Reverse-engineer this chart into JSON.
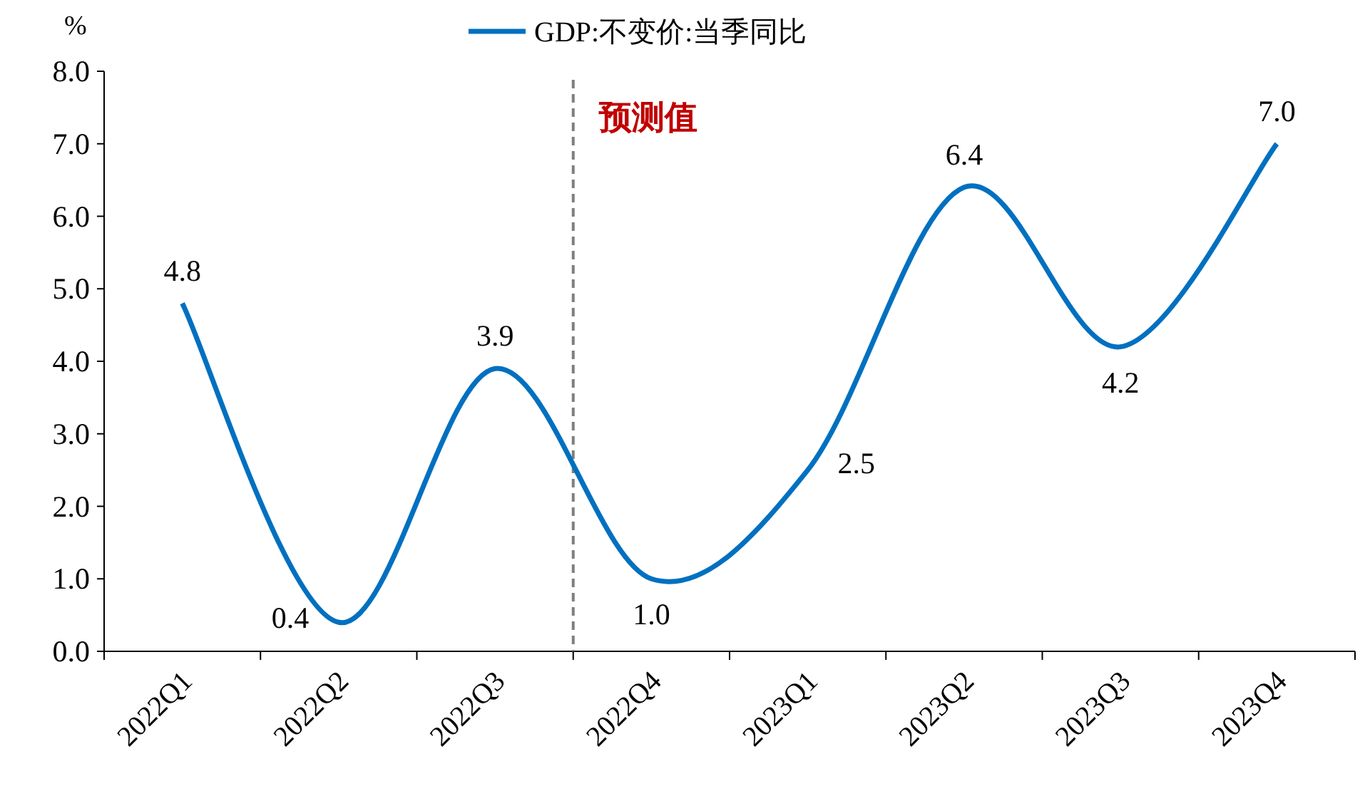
{
  "chart_data": {
    "type": "line",
    "ylabel": "%",
    "categories": [
      "2022Q1",
      "2022Q2",
      "2022Q3",
      "2022Q4",
      "2023Q1",
      "2023Q2",
      "2023Q3",
      "2023Q4"
    ],
    "series": [
      {
        "name": "GDP:不变价:当季同比",
        "color": "#0070c0",
        "values": [
          4.8,
          0.4,
          3.9,
          1.0,
          2.5,
          6.4,
          4.2,
          7.0
        ],
        "value_labels": [
          "4.8",
          "0.4",
          "3.9",
          "1.0",
          "2.5",
          "6.4",
          "4.2",
          "7.0"
        ]
      }
    ],
    "ylim": [
      0,
      8
    ],
    "yticks": [
      {
        "value": 0,
        "label": "0.0"
      },
      {
        "value": 1,
        "label": "1.0"
      },
      {
        "value": 2,
        "label": "2.0"
      },
      {
        "value": 3,
        "label": "3.0"
      },
      {
        "value": 4,
        "label": "4.0"
      },
      {
        "value": 5,
        "label": "5.0"
      },
      {
        "value": 6,
        "label": "6.0"
      },
      {
        "value": 7,
        "label": "7.0"
      },
      {
        "value": 8,
        "label": "8.0"
      }
    ],
    "annotations": [
      "预测值"
    ],
    "legend": "top",
    "grid": false,
    "marker": "none",
    "line_style": "solid"
  }
}
